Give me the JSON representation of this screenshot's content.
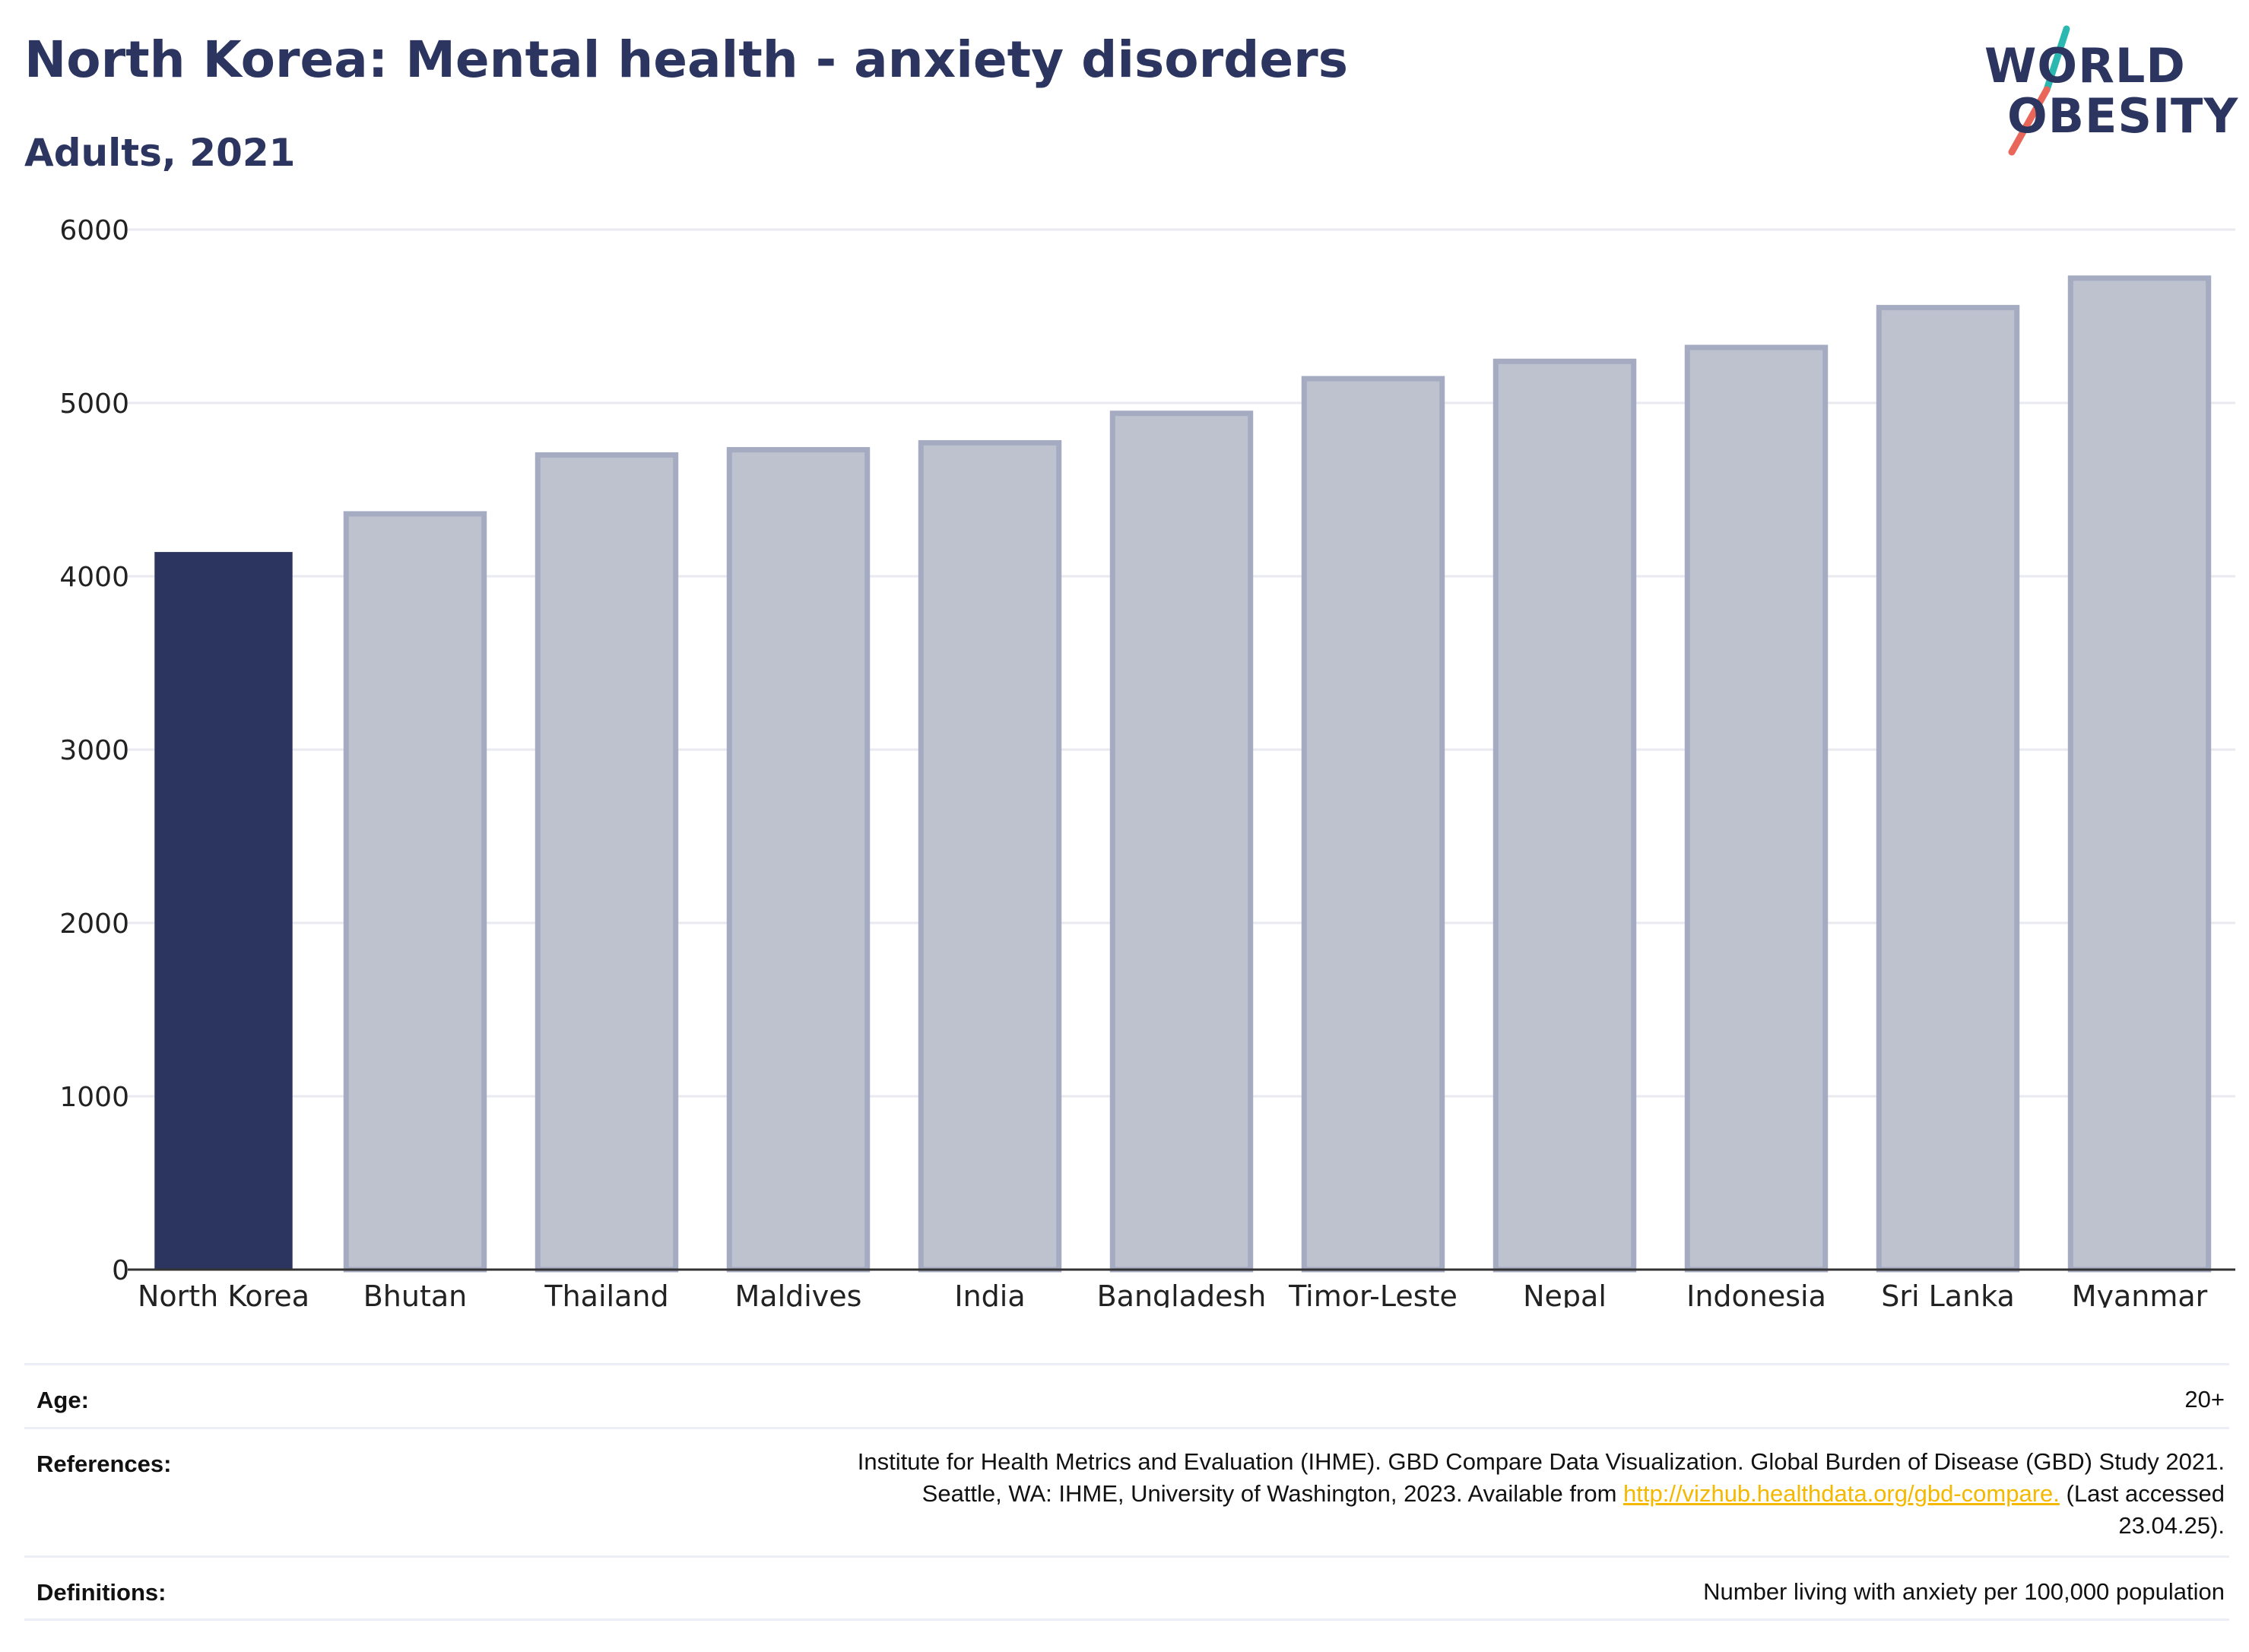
{
  "header": {
    "title": "North Korea: Mental health - anxiety disorders",
    "subtitle": "Adults, 2021"
  },
  "logo": {
    "line1": "WORLD",
    "line2": "OBESITY",
    "text_color": "#2b3560",
    "slash_top_color": "#2bb8b0",
    "slash_bottom_color": "#e8665a"
  },
  "chart_data": {
    "type": "bar",
    "categories": [
      "North Korea",
      "Bhutan",
      "Thailand",
      "Maldives",
      "India",
      "Bangladesh",
      "Timor-Leste",
      "Nepal",
      "Indonesia",
      "Sri Lanka",
      "Myanmar"
    ],
    "values": [
      4140,
      4360,
      4700,
      4730,
      4770,
      4940,
      5140,
      5240,
      5320,
      5550,
      5720
    ],
    "highlight": "North Korea",
    "title": "",
    "xlabel": "",
    "ylabel": "",
    "ylim": [
      0,
      6000
    ],
    "yticks": [
      0,
      1000,
      2000,
      3000,
      4000,
      5000,
      6000
    ],
    "grid": true,
    "legend": "none",
    "colors": {
      "highlight": "#2b3560",
      "other_fill": "#bec2cf",
      "other_stroke": "#a5abc0",
      "grid": "#e9eaf0",
      "axis": "#333333"
    }
  },
  "meta": {
    "age_label": "Age:",
    "age_value": "20+",
    "references_label": "References:",
    "references_line1": "Institute for Health Metrics and Evaluation (IHME). GBD Compare Data Visualization. Global Burden of Disease (GBD) Study 2021.",
    "references_line2_pre": "Seattle, WA: IHME, University of Washington, 2023. Available from ",
    "references_link": "http://vizhub.healthdata.org/gbd-compare.",
    "references_line2_post": " (Last accessed",
    "references_line3": "23.04.25).",
    "definitions_label": "Definitions:",
    "definitions_value": "Number living with anxiety per 100,000 population"
  }
}
